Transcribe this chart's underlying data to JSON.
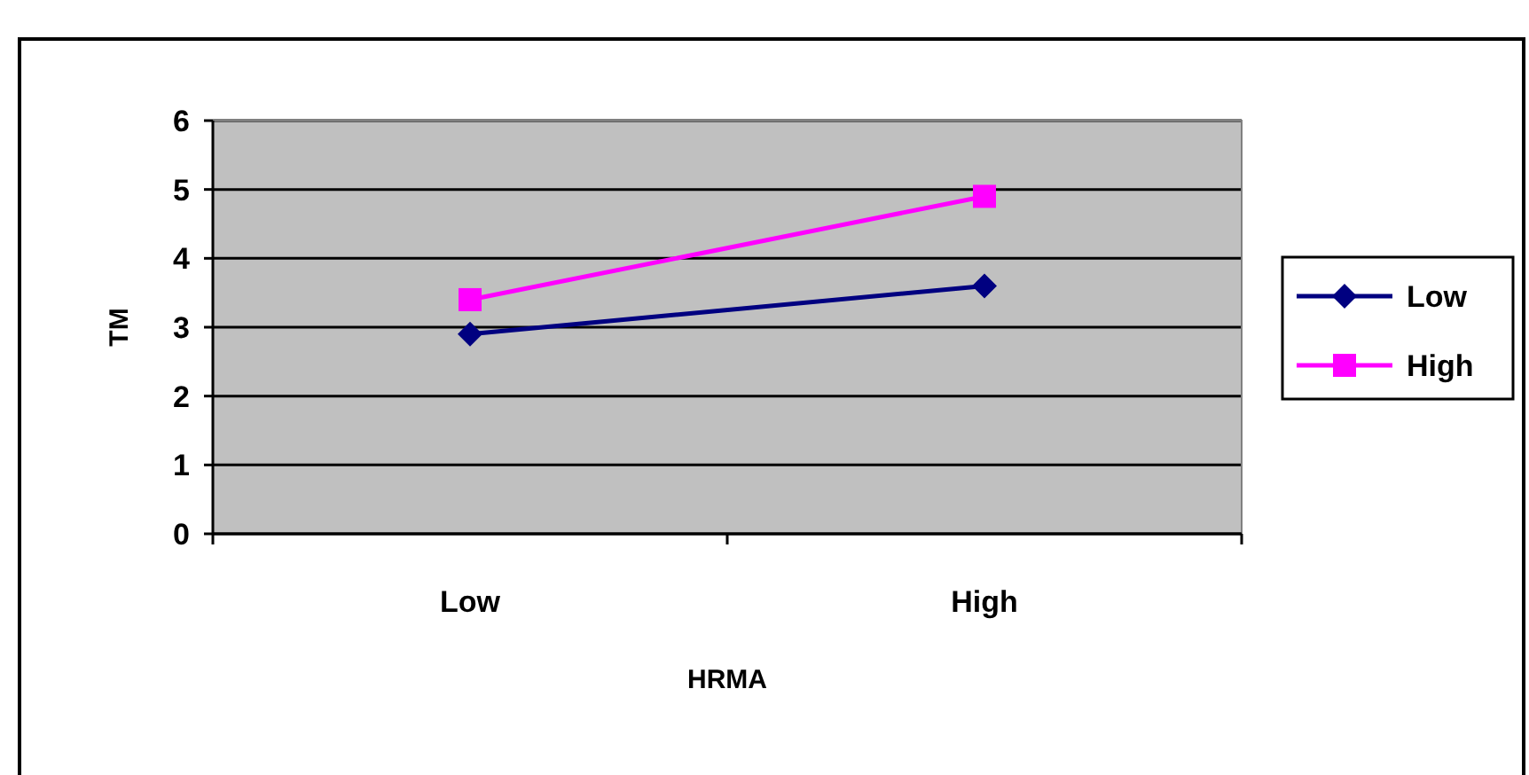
{
  "chart_data": {
    "type": "line",
    "xlabel": "HRMA",
    "ylabel": "TM",
    "categories": [
      "Low",
      "High"
    ],
    "series": [
      {
        "name": "Low",
        "color": "#000080",
        "values": [
          2.9,
          3.6
        ],
        "marker": "diamond"
      },
      {
        "name": "High",
        "color": "#ff00ff",
        "values": [
          3.4,
          4.9
        ],
        "marker": "square"
      }
    ],
    "ylim": [
      0,
      6
    ],
    "yticks": [
      0,
      1,
      2,
      3,
      4,
      5,
      6
    ],
    "grid": "y",
    "legend": "right",
    "line_style": "solid"
  }
}
